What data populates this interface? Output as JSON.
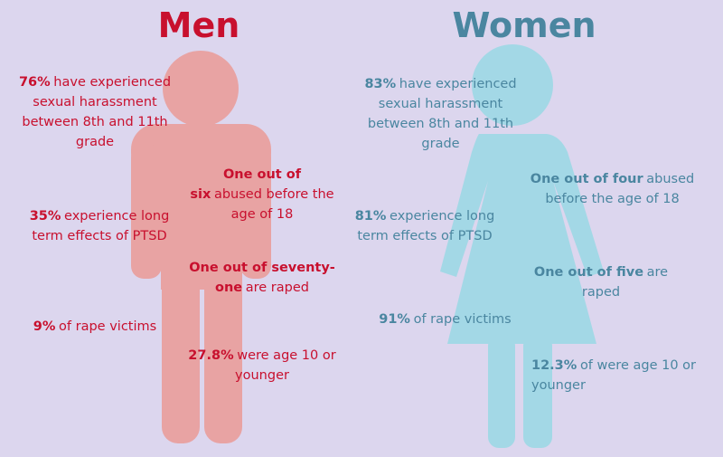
{
  "men": {
    "title": "Men",
    "facts": [
      {
        "bold": "76%",
        "text": "have experienced sexual harassment between 8th and 11th grade"
      },
      {
        "bold": "One out of six",
        "text": "abused before the age of 18"
      },
      {
        "bold": "35%",
        "text": "experience long term effects of PTSD"
      },
      {
        "bold": "One out of seventy-one",
        "text": "are raped"
      },
      {
        "bold": "9%",
        "text": "of rape victims"
      },
      {
        "bold": "27.8%",
        "text": "were age 10 or younger"
      }
    ]
  },
  "women": {
    "title": "Women",
    "facts": [
      {
        "bold": "83%",
        "text": "have experienced sexual harassment between 8th and 11th grade"
      },
      {
        "bold": "One out of four",
        "text": "abused before the age of 18"
      },
      {
        "bold": "81%",
        "text": "experience long term effects of PTSD"
      },
      {
        "bold": "One out of five",
        "text": "are raped"
      },
      {
        "bold": "91%",
        "text": "of rape victims"
      },
      {
        "bold": "12.3%",
        "text": "of were age 10 or younger"
      }
    ]
  }
}
